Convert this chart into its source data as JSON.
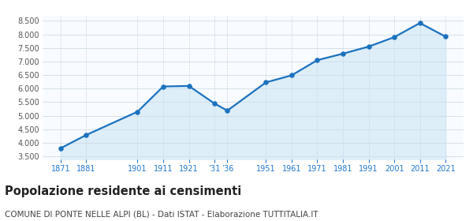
{
  "years": [
    1871,
    1881,
    1901,
    1911,
    1921,
    1931,
    1936,
    1951,
    1961,
    1971,
    1981,
    1991,
    2001,
    2011,
    2021
  ],
  "population": [
    3800,
    4290,
    5150,
    6080,
    6100,
    5450,
    5190,
    6230,
    6490,
    7050,
    7290,
    7550,
    7900,
    8420,
    7920
  ],
  "x_tick_years": [
    1871,
    1881,
    1901,
    1911,
    1921,
    1931,
    1936,
    1951,
    1961,
    1971,
    1981,
    1991,
    2001,
    2011,
    2021
  ],
  "x_labels": [
    "1871",
    "1881",
    "1901",
    "1911",
    "1921",
    "’31",
    "’36",
    "1951",
    "1961",
    "1971",
    "1981",
    "1991",
    "2001",
    "2011",
    "2021"
  ],
  "ylim": [
    3400,
    8700
  ],
  "yticks": [
    3500,
    4000,
    4500,
    5000,
    5500,
    6000,
    6500,
    7000,
    7500,
    8000,
    8500
  ],
  "xlim": [
    1864,
    2028
  ],
  "line_color": "#1b72be",
  "fill_color": "#ddeef9",
  "marker_color": "#1b72be",
  "bg_color": "#ffffff",
  "plot_bg_color": "#f8fbff",
  "title": "Popolazione residente ai censimenti",
  "subtitle": "COMUNE DI PONTE NELLE ALPI (BL) - Dati ISTAT - Elaborazione TUTTITALIA.IT",
  "title_fontsize": 10.5,
  "subtitle_fontsize": 7.5,
  "axis_label_color": "#2277cc",
  "ytick_color": "#555555",
  "grid_color": "#c8d8e8",
  "grid_color_h": "#d0dce8"
}
